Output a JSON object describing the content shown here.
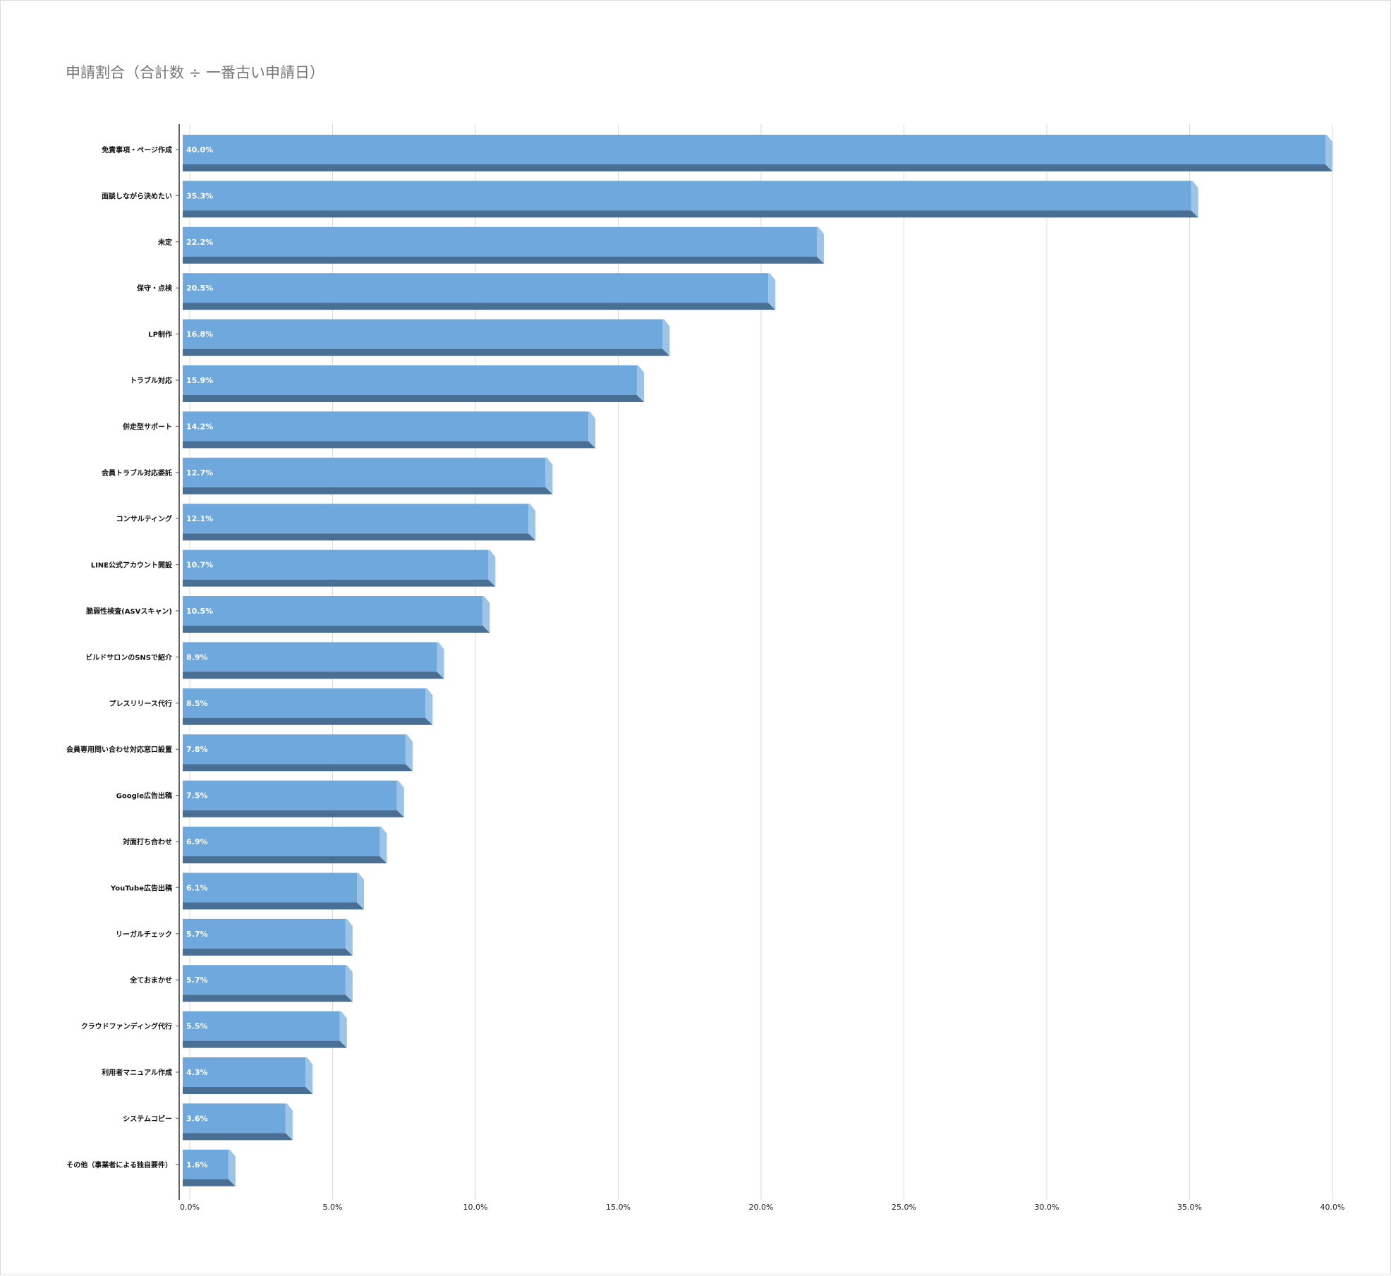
{
  "chart_data": {
    "type": "bar",
    "orientation": "horizontal",
    "title": "申請割合（合計数 ÷ 一番古い申請日）",
    "xlabel": "",
    "ylabel": "",
    "xlim": [
      0,
      40
    ],
    "x_ticks": [
      "0.0%",
      "5.0%",
      "10.0%",
      "15.0%",
      "20.0%",
      "25.0%",
      "30.0%",
      "35.0%",
      "40.0%"
    ],
    "grid": true,
    "legend": "none",
    "colors": {
      "bar_face": "#6fa8dc",
      "bar_bottom": "#4a6f95",
      "bar_side": "#9dc3e6"
    },
    "categories": [
      "免責事項・ページ作成",
      "面談しながら決めたい",
      "未定",
      "保守・点検",
      "LP制作",
      "トラブル対応",
      "併走型サポート",
      "会員トラブル対応委託",
      "コンサルティング",
      "LINE公式アカウント開設",
      "脆弱性検査(ASVスキャン)",
      "ビルドサロンのSNSで紹介",
      "プレスリリース代行",
      "会員専用問い合わせ対応窓口設置",
      "Google広告出稿",
      "対面打ち合わせ",
      "YouTube広告出稿",
      "リーガルチェック",
      "全ておまかせ",
      "クラウドファンディング代行",
      "利用者マニュアル作成",
      "システムコピー",
      "その他（事業者による独自要件）"
    ],
    "values": [
      40.0,
      35.3,
      22.2,
      20.5,
      16.8,
      15.9,
      14.2,
      12.7,
      12.1,
      10.7,
      10.5,
      8.9,
      8.5,
      7.8,
      7.5,
      6.9,
      6.1,
      5.7,
      5.7,
      5.5,
      4.3,
      3.6,
      1.6
    ],
    "data_labels": [
      "40.0%",
      "35.3%",
      "22.2%",
      "20.5%",
      "16.8%",
      "15.9%",
      "14.2%",
      "12.7%",
      "12.1%",
      "10.7%",
      "10.5%",
      "8.9%",
      "8.5%",
      "7.8%",
      "7.5%",
      "6.9%",
      "6.1%",
      "5.7%",
      "5.7%",
      "5.5%",
      "4.3%",
      "3.6%",
      "1.6%"
    ]
  }
}
